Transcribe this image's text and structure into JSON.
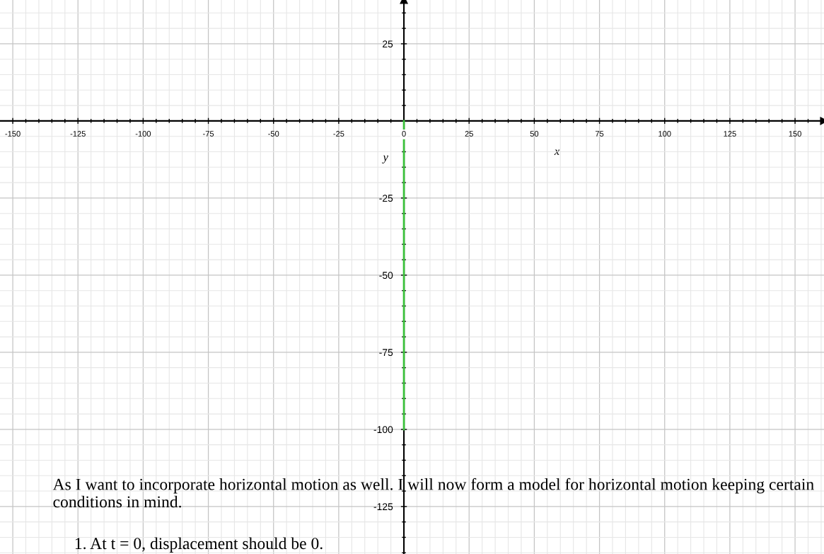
{
  "chart_data": {
    "type": "line",
    "xlabel": "x",
    "ylabel": "y",
    "xlim": [
      -154.9,
      161.1
    ],
    "ylim": [
      -140.4,
      39.2
    ],
    "xticks": [
      -150,
      -125,
      -100,
      -75,
      -50,
      -25,
      0,
      25,
      50,
      75,
      100,
      125,
      150
    ],
    "yticks": [
      {
        "value": -125,
        "label": "-125"
      },
      {
        "value": -100,
        "label": "-100"
      },
      {
        "value": -75,
        "label": "-75"
      },
      {
        "value": -50,
        "label": "-50"
      },
      {
        "value": -25,
        "label": "-25"
      },
      {
        "value": 0,
        "label": null
      },
      25
    ],
    "grid": true,
    "marker": "none",
    "line_style": "solid",
    "series": [
      {
        "color": "#3cc23c",
        "x": [
          0,
          0
        ],
        "values": [
          0,
          -100
        ]
      }
    ],
    "annotations": [
      "As I want to incorporate horizontal motion as well. I will now form a model for horizontal motion keeping certain conditions in mind.",
      "1. At t = 0, displacement should be 0."
    ]
  }
}
